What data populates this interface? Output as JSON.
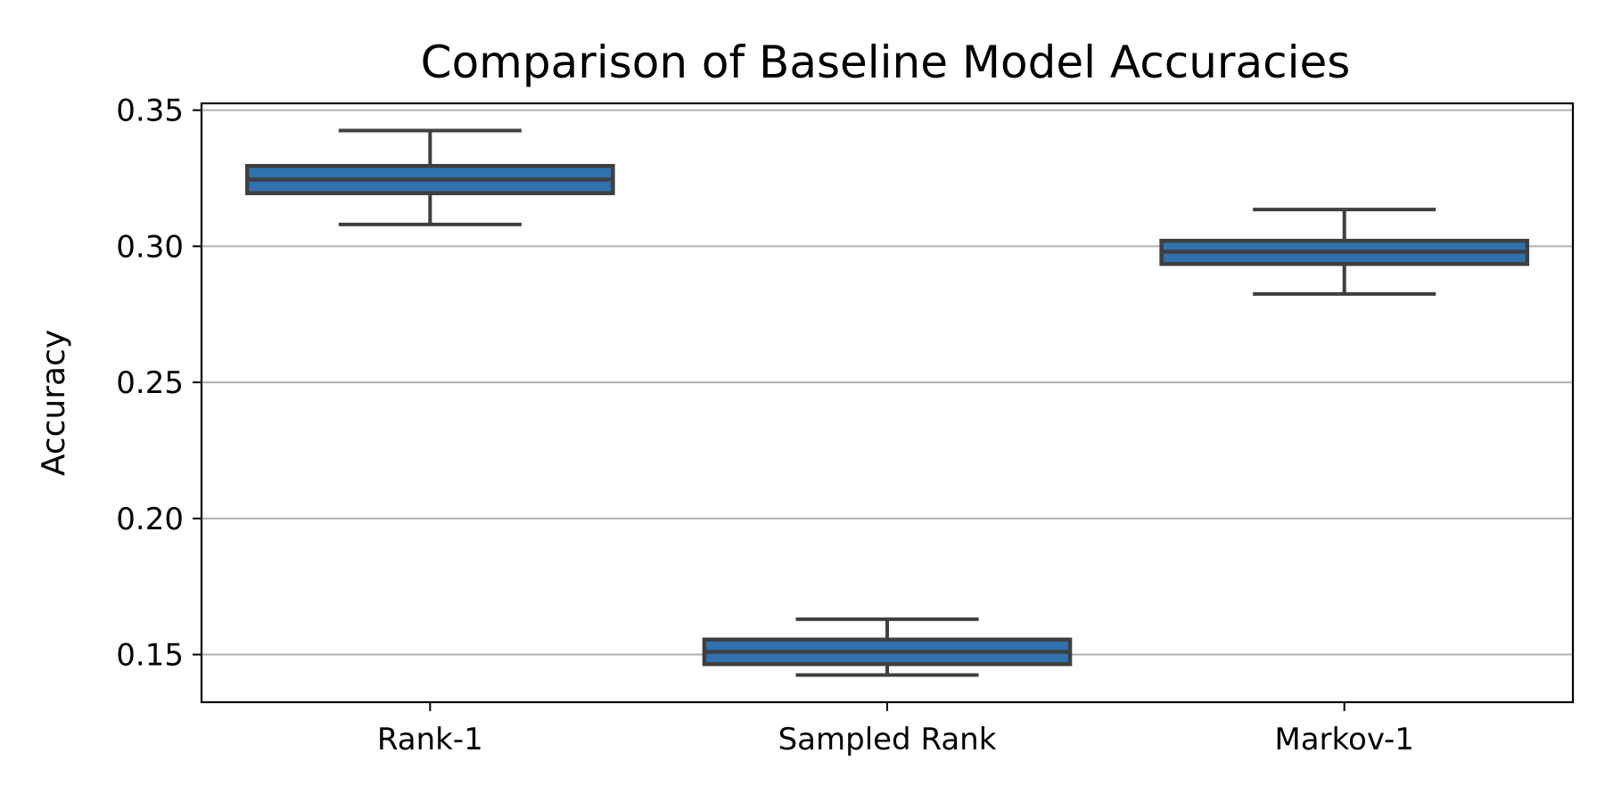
{
  "chart_data": {
    "type": "box",
    "title": "Comparison of Baseline Model Accuracies",
    "xlabel": "",
    "ylabel": "Accuracy",
    "ylim": [
      0.1325,
      0.3525
    ],
    "yticks": [
      0.15,
      0.2,
      0.25,
      0.3,
      0.35
    ],
    "ytick_labels": [
      "0.15",
      "0.20",
      "0.25",
      "0.30",
      "0.35"
    ],
    "grid": "horizontal",
    "categories": [
      "Rank-1",
      "Sampled Rank",
      "Markov-1"
    ],
    "boxes": [
      {
        "category": "Rank-1",
        "whisker_low": 0.308,
        "q1": 0.3195,
        "median": 0.3245,
        "q3": 0.3295,
        "whisker_high": 0.3425
      },
      {
        "category": "Sampled Rank",
        "whisker_low": 0.1425,
        "q1": 0.1465,
        "median": 0.151,
        "q3": 0.1555,
        "whisker_high": 0.163
      },
      {
        "category": "Markov-1",
        "whisker_low": 0.2825,
        "q1": 0.2935,
        "median": 0.298,
        "q3": 0.302,
        "whisker_high": 0.3135
      }
    ],
    "colors": {
      "box_fill": "#2f72b0",
      "box_edge": "#3f3f3f",
      "grid": "#b0b0b0",
      "axis": "#000000"
    }
  }
}
